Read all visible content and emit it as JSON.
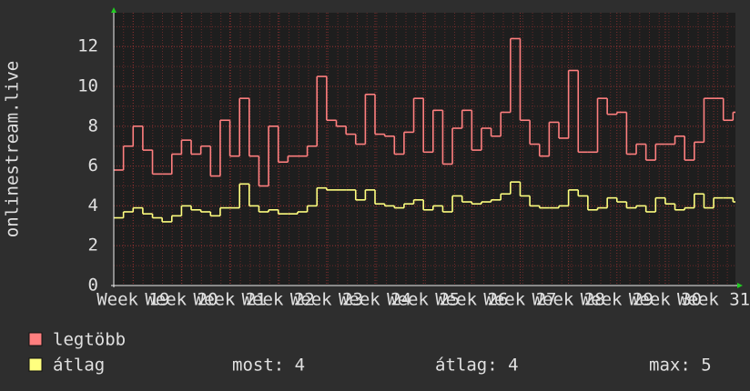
{
  "chart_data": {
    "type": "line",
    "ylabel": "onlinestream.live",
    "xlim": [
      18.6,
      31.45
    ],
    "xticks": [
      {
        "value": 19,
        "label": "Week 19"
      },
      {
        "value": 20,
        "label": "Week 20"
      },
      {
        "value": 21,
        "label": "Week 21"
      },
      {
        "value": 22,
        "label": "Week 22"
      },
      {
        "value": 23,
        "label": "Week 23"
      },
      {
        "value": 24,
        "label": "Week 24"
      },
      {
        "value": 25,
        "label": "Week 25"
      },
      {
        "value": 26,
        "label": "Week 26"
      },
      {
        "value": 27,
        "label": "Week 27"
      },
      {
        "value": 28,
        "label": "Week 28"
      },
      {
        "value": 29,
        "label": "Week 29"
      },
      {
        "value": 30,
        "label": "Week 30"
      },
      {
        "value": 31,
        "label": "Week 31"
      }
    ],
    "ylim": [
      0,
      13.7
    ],
    "yticks": [
      0,
      2,
      4,
      6,
      8,
      10,
      12
    ],
    "grid": true,
    "x": [
      18.6,
      18.8,
      19.0,
      19.2,
      19.4,
      19.6,
      19.8,
      20.0,
      20.2,
      20.4,
      20.6,
      20.8,
      21.0,
      21.2,
      21.4,
      21.6,
      21.8,
      22.0,
      22.2,
      22.4,
      22.6,
      22.8,
      23.0,
      23.2,
      23.4,
      23.6,
      23.8,
      24.0,
      24.2,
      24.4,
      24.6,
      24.8,
      25.0,
      25.2,
      25.4,
      25.6,
      25.8,
      26.0,
      26.2,
      26.4,
      26.6,
      26.8,
      27.0,
      27.2,
      27.4,
      27.6,
      27.8,
      28.0,
      28.2,
      28.4,
      28.6,
      28.8,
      29.0,
      29.2,
      29.4,
      29.6,
      29.8,
      30.0,
      30.2,
      30.4,
      30.6,
      30.8,
      31.0,
      31.2,
      31.4
    ],
    "series": [
      {
        "name": "legtöbb",
        "color": "#ff7f7f",
        "values": [
          5.8,
          7,
          8,
          6.8,
          5.6,
          5.6,
          6.6,
          7.3,
          6.6,
          7,
          5.5,
          8.3,
          6.5,
          9.4,
          6.5,
          5,
          8,
          6.2,
          6.5,
          6.5,
          7,
          10.5,
          8.3,
          8,
          7.6,
          7.1,
          9.6,
          7.6,
          7.5,
          6.6,
          7.7,
          9.4,
          6.7,
          8.8,
          6.1,
          7.9,
          8.8,
          6.8,
          7.9,
          7.5,
          8.7,
          12.4,
          8.3,
          7.1,
          6.5,
          8.2,
          7.4,
          10.8,
          6.7,
          6.7,
          9.4,
          8.6,
          8.7,
          6.6,
          7.1,
          6.3,
          7.1,
          7.1,
          7.5,
          6.3,
          7.2,
          9.4,
          9.4,
          8.3,
          8.7
        ]
      },
      {
        "name": "átlag",
        "color": "#ffff7f",
        "values": [
          3.4,
          3.7,
          3.9,
          3.6,
          3.4,
          3.2,
          3.5,
          4,
          3.8,
          3.7,
          3.5,
          3.9,
          3.9,
          5.1,
          4,
          3.7,
          3.8,
          3.6,
          3.6,
          3.7,
          4,
          4.9,
          4.8,
          4.8,
          4.8,
          4.3,
          4.8,
          4.1,
          4,
          3.9,
          4.1,
          4.3,
          3.8,
          4,
          3.7,
          4.5,
          4.2,
          4.1,
          4.2,
          4.3,
          4.6,
          5.2,
          4.5,
          4,
          3.9,
          3.9,
          4,
          4.8,
          4.5,
          3.8,
          3.9,
          4.4,
          4.2,
          3.9,
          4,
          3.7,
          4.4,
          4.1,
          3.8,
          3.9,
          4.6,
          3.9,
          4.4,
          4.4,
          4.2
        ]
      }
    ],
    "stats": [
      "most: 4",
      "átlag: 4",
      "max: 5"
    ]
  }
}
